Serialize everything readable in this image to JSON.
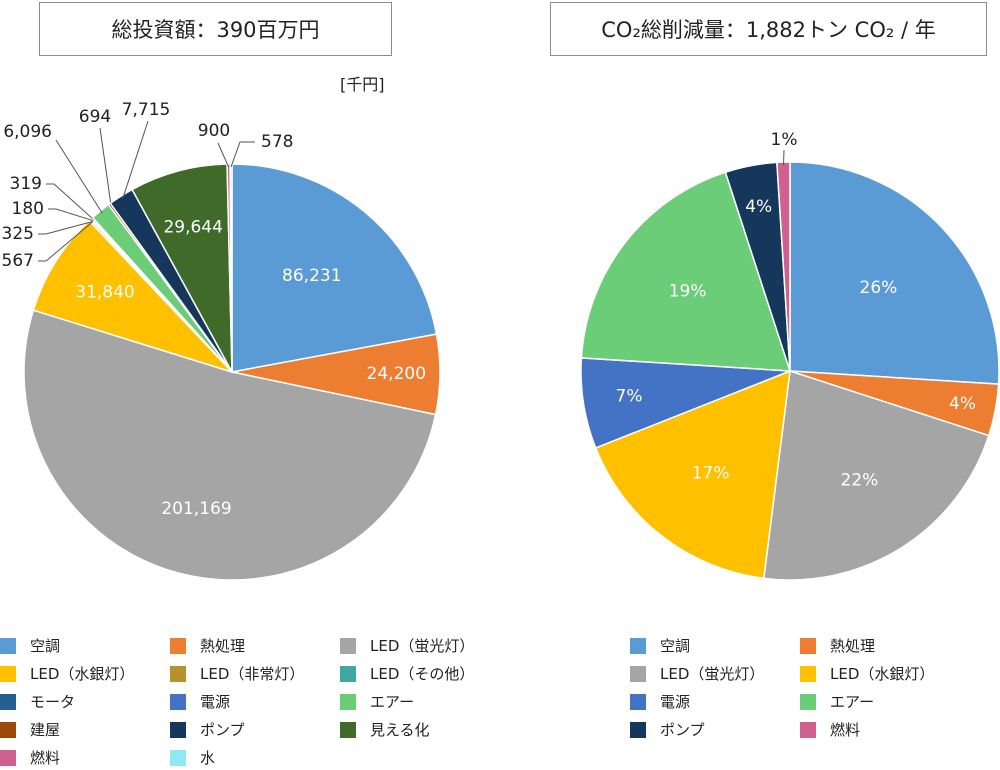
{
  "colors": {
    "aircon": "#5b9bd5",
    "heat": "#ed7d31",
    "led_fluor": "#a5a5a5",
    "led_mercury": "#ffc000",
    "led_emerg": "#b8912b",
    "led_other": "#3fa8a0",
    "motor": "#255e91",
    "power": "#4472c4",
    "air": "#6bcd78",
    "building": "#9e480e",
    "pump": "#14375b",
    "visual": "#3f6a2a",
    "fuel": "#d06090",
    "water": "#8fe8f6"
  },
  "chart_data": [
    {
      "type": "pie",
      "title": "総投資額：390百万円",
      "unit": "[千円]",
      "slices": [
        {
          "label": "空調",
          "value": 86231,
          "display": "86,231",
          "color_key": "aircon"
        },
        {
          "label": "熱処理",
          "value": 24200,
          "display": "24,200",
          "color_key": "heat"
        },
        {
          "label": "LED（蛍光灯）",
          "value": 201169,
          "display": "201,169",
          "color_key": "led_fluor"
        },
        {
          "label": "LED（水銀灯）",
          "value": 31840,
          "display": "31,840",
          "color_key": "led_mercury"
        },
        {
          "label": "LED（非常灯）",
          "value": 567,
          "display": "567",
          "color_key": "led_emerg"
        },
        {
          "label": "LED（その他）",
          "value": 325,
          "display": "325",
          "color_key": "led_other"
        },
        {
          "label": "モータ",
          "value": 180,
          "display": "180",
          "color_key": "motor"
        },
        {
          "label": "電源",
          "value": 319,
          "display": "319",
          "color_key": "power"
        },
        {
          "label": "エアー",
          "value": 6096,
          "display": "6,096",
          "color_key": "air"
        },
        {
          "label": "建屋",
          "value": 694,
          "display": "694",
          "color_key": "building"
        },
        {
          "label": "ポンプ",
          "value": 7715,
          "display": "7,715",
          "color_key": "pump"
        },
        {
          "label": "見える化",
          "value": 29644,
          "display": "29,644",
          "color_key": "visual"
        },
        {
          "label": "燃料",
          "value": 900,
          "display": "900",
          "color_key": "fuel"
        },
        {
          "label": "水",
          "value": 578,
          "display": "578",
          "color_key": "water"
        }
      ],
      "legend": [
        "空調",
        "熱処理",
        "LED（蛍光灯）",
        "LED（水銀灯）",
        "LED（非常灯）",
        "LED（その他）",
        "モータ",
        "電源",
        "エアー",
        "建屋",
        "ポンプ",
        "見える化",
        "燃料",
        "水"
      ],
      "legend_position": "bottom"
    },
    {
      "type": "pie",
      "title": "CO₂総削減量：1,882トン CO₂ / 年",
      "slices": [
        {
          "label": "空調",
          "value": 26,
          "display": "26%",
          "color_key": "aircon"
        },
        {
          "label": "熱処理",
          "value": 4,
          "display": "4%",
          "color_key": "heat"
        },
        {
          "label": "LED（蛍光灯）",
          "value": 22,
          "display": "22%",
          "color_key": "led_fluor"
        },
        {
          "label": "LED（水銀灯）",
          "value": 17,
          "display": "17%",
          "color_key": "led_mercury"
        },
        {
          "label": "電源",
          "value": 7,
          "display": "7%",
          "color_key": "power"
        },
        {
          "label": "エアー",
          "value": 19,
          "display": "19%",
          "color_key": "air"
        },
        {
          "label": "ポンプ",
          "value": 4,
          "display": "4%",
          "color_key": "pump"
        },
        {
          "label": "燃料",
          "value": 1,
          "display": "1%",
          "color_key": "fuel"
        }
      ],
      "legend": [
        "空調",
        "熱処理",
        "LED（蛍光灯）",
        "LED（水銀灯）",
        "電源",
        "エアー",
        "ポンプ",
        "燃料"
      ],
      "legend_position": "bottom"
    }
  ]
}
